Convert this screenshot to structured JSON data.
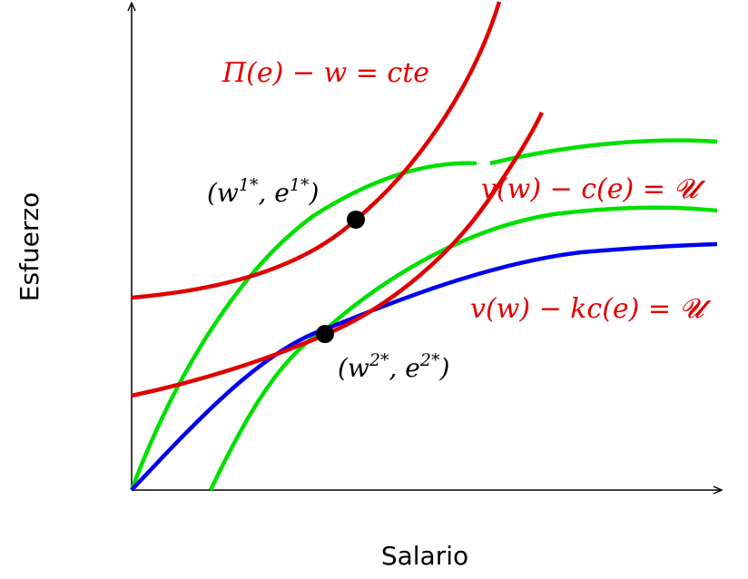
{
  "axes": {
    "xlabel": "Salario",
    "ylabel": "Esfuerzo"
  },
  "colors": {
    "red": "#e00000",
    "green": "#00e000",
    "blue": "#0000ee",
    "axis": "#000000"
  },
  "labels": {
    "profit": "Π(e) − w = cte",
    "participation_1": "v(w) − c(e) = 𝓤",
    "participation_2": "v(w) − kc(e) = 𝓤",
    "point1_base_w": "(w",
    "point1_sup_w": "1*",
    "point1_mid": ", e",
    "point1_sup_e": "1*",
    "point1_close": ")",
    "point2_base_w": "(w",
    "point2_sup_w": "2*",
    "point2_mid": ", e",
    "point2_sup_e": "2*",
    "point2_close": ")"
  }
}
